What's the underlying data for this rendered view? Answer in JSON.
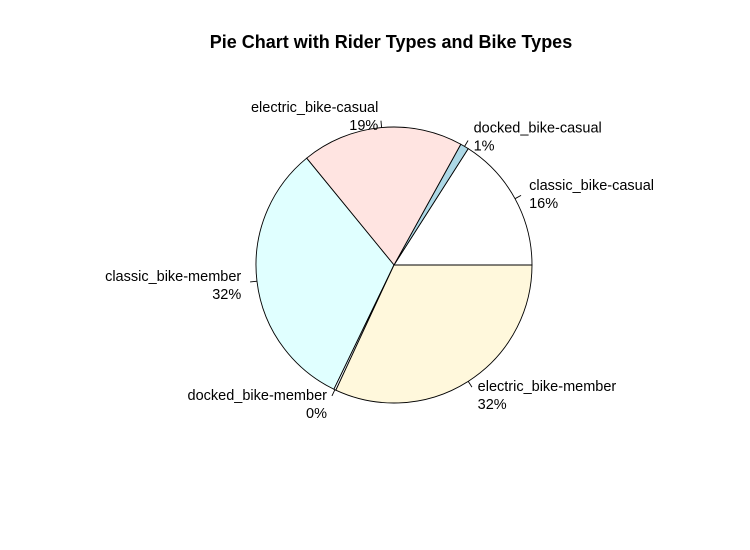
{
  "chart_data": {
    "type": "pie",
    "title": "Pie Chart with Rider Types and Bike Types",
    "start_angle_deg": 0,
    "direction": "counterclockwise",
    "legend": "none",
    "slices": [
      {
        "label": "classic_bike-casual",
        "value": 16,
        "percent_label": "16%",
        "color": "#ffffff"
      },
      {
        "label": "docked_bike-casual",
        "value": 1,
        "percent_label": "1%",
        "color": "#add8e6"
      },
      {
        "label": "electric_bike-casual",
        "value": 19,
        "percent_label": "19%",
        "color": "#ffe4e1"
      },
      {
        "label": "classic_bike-member",
        "value": 32,
        "percent_label": "32%",
        "color": "#e0ffff"
      },
      {
        "label": "docked_bike-member",
        "value": 0,
        "percent_label": "0%",
        "color": "#f0f8ff"
      },
      {
        "label": "electric_bike-member",
        "value": 32,
        "percent_label": "32%",
        "color": "#fff8dc"
      }
    ]
  }
}
